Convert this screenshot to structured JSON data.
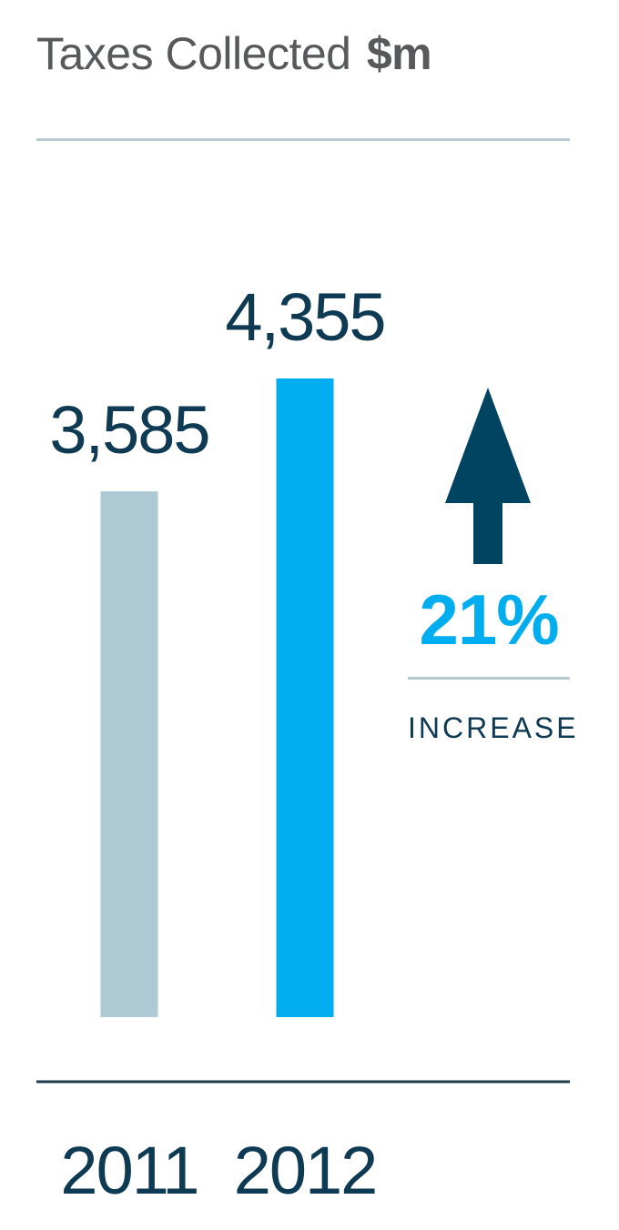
{
  "header": {
    "title": "Taxes Collected",
    "unit": "$m"
  },
  "chart_data": {
    "type": "bar",
    "title": "Taxes Collected $m",
    "categories": [
      "2011",
      "2012"
    ],
    "values": [
      3585,
      4355
    ],
    "value_labels": [
      "3,585",
      "4,355"
    ],
    "bar_colors": [
      "#adc9d4",
      "#00aeef"
    ],
    "ylim": [
      0,
      4355
    ],
    "xlabel": "",
    "ylabel": "",
    "grid": false,
    "legend": "none"
  },
  "callout": {
    "percent": "21%",
    "caption": "INCREASE",
    "arrow_icon": "up-arrow-icon"
  },
  "colors": {
    "title": "#58595b",
    "rule_light": "#b7cbd5",
    "rule_dark": "#1e3a4c",
    "label_dark": "#0f3a54",
    "arrow": "#004462",
    "accent": "#00aeef",
    "muted_bar": "#adc9d4"
  }
}
